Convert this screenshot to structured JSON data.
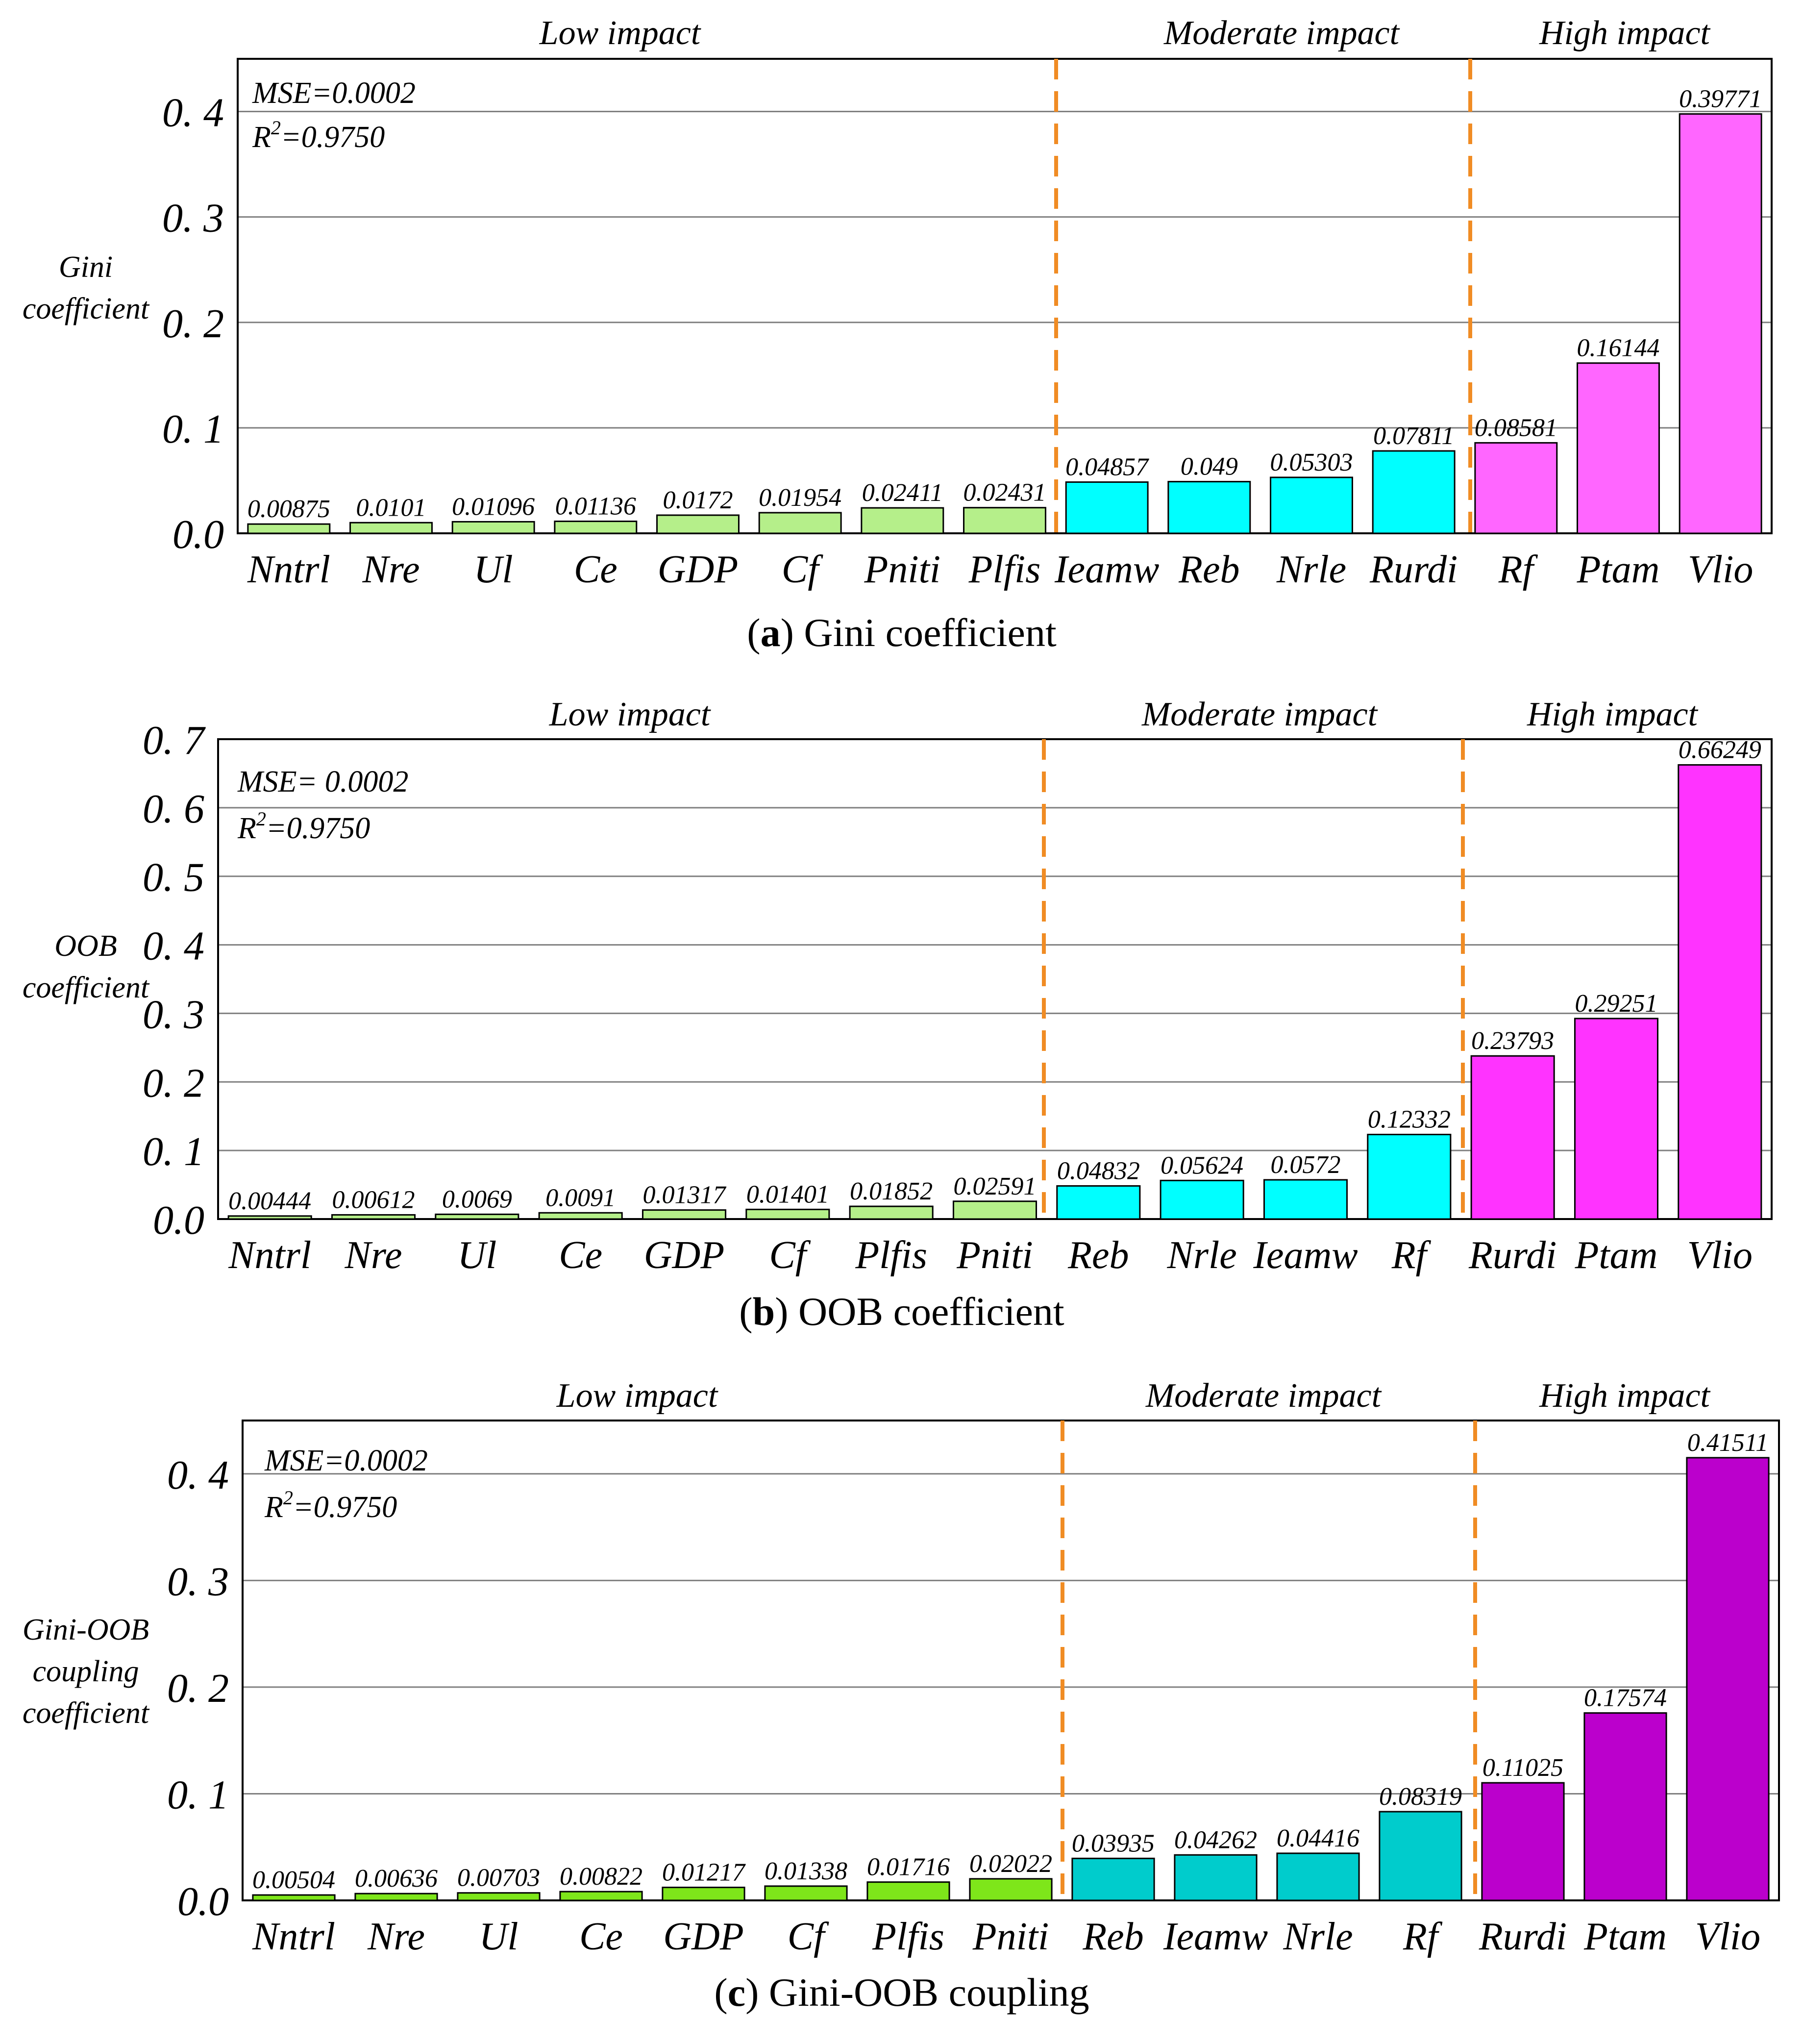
{
  "colors": {
    "low_a": "#b5ef8a",
    "mod_a": "#00ffff",
    "high_a": "#ff66ff",
    "low_b": "#b5ef8a",
    "mod_b": "#00ffff",
    "high_b": "#ff33ff",
    "low_c": "#7ee61a",
    "mod_c": "#00cccc",
    "high_c": "#bb00cc",
    "divider": "#f08c24",
    "grid": "#808080",
    "axis": "#000000"
  },
  "chart_data": [
    {
      "type": "bar",
      "caption_letter": "a",
      "caption_text": ") Gini coefficient",
      "ylabel": [
        "Gini",
        "coefficient"
      ],
      "ylim": [
        0,
        0.45
      ],
      "yticks": [
        "0.0",
        "0. 1",
        "0. 2",
        "0. 3",
        "0. 4"
      ],
      "ytick_values": [
        0,
        0.1,
        0.2,
        0.3,
        0.4
      ],
      "annotation": {
        "mse": "MSE=0.0002",
        "r2_prefix": "R",
        "r2_sup": "2",
        "r2_suffix": "=0.9750"
      },
      "regions": [
        {
          "label": "Low impact",
          "count": 8
        },
        {
          "label": "Moderate impact",
          "count": 4
        },
        {
          "label": "High impact",
          "count": 3
        }
      ],
      "categories": [
        "Nntrl",
        "Nre",
        "Ul",
        "Ce",
        "GDP",
        "Cf",
        "Pniti",
        "Plfis",
        "Ieamw",
        "Reb",
        "Nrle",
        "Rurdi",
        "Rf",
        "Ptam",
        "Vlio"
      ],
      "values": [
        0.00875,
        0.0101,
        0.01096,
        0.01136,
        0.0172,
        0.01954,
        0.02411,
        0.02431,
        0.04857,
        0.049,
        0.05303,
        0.07811,
        0.08581,
        0.16144,
        0.39771
      ],
      "value_labels": [
        "0.00875",
        "0.0101",
        "0.01096",
        "0.01136",
        "0.0172",
        "0.01954",
        "0.02411",
        "0.02431",
        "0.04857",
        "0.049",
        "0.05303",
        "0.07811",
        "0.08581",
        "0.16144",
        "0.39771"
      ],
      "grid": true
    },
    {
      "type": "bar",
      "caption_letter": "b",
      "caption_text": ") OOB coefficient",
      "ylabel": [
        "OOB",
        "coefficient"
      ],
      "ylim": [
        0,
        0.7
      ],
      "yticks": [
        "0.0",
        "0. 1",
        "0. 2",
        "0. 3",
        "0. 4",
        "0. 5",
        "0. 6",
        "0. 7"
      ],
      "ytick_values": [
        0,
        0.1,
        0.2,
        0.3,
        0.4,
        0.5,
        0.6,
        0.7
      ],
      "annotation": {
        "mse": "MSE= 0.0002",
        "r2_prefix": "R",
        "r2_sup": "2",
        "r2_suffix": "=0.9750"
      },
      "regions": [
        {
          "label": "Low impact",
          "count": 8
        },
        {
          "label": "Moderate impact",
          "count": 4
        },
        {
          "label": "High impact",
          "count": 3
        }
      ],
      "categories": [
        "Nntrl",
        "Nre",
        "Ul",
        "Ce",
        "GDP",
        "Cf",
        "Plfis",
        "Pniti",
        "Reb",
        "Nrle",
        "Ieamw",
        "Rf",
        "Rurdi",
        "Ptam",
        "Vlio"
      ],
      "values": [
        0.00444,
        0.00612,
        0.0069,
        0.0091,
        0.01317,
        0.01401,
        0.01852,
        0.02591,
        0.04832,
        0.05624,
        0.0572,
        0.12332,
        0.23793,
        0.29251,
        0.66249
      ],
      "value_labels": [
        "0.00444",
        "0.00612",
        "0.0069",
        "0.0091",
        "0.01317",
        "0.01401",
        "0.01852",
        "0.02591",
        "0.04832",
        "0.05624",
        "0.0572",
        "0.12332",
        "0.23793",
        "0.29251",
        "0.66249"
      ],
      "grid": true
    },
    {
      "type": "bar",
      "caption_letter": "c",
      "caption_text": ") Gini-OOB coupling",
      "ylabel": [
        "Gini-OOB",
        "coupling",
        "coefficient"
      ],
      "ylim": [
        0,
        0.45
      ],
      "yticks": [
        "0.0",
        "0. 1",
        "0. 2",
        "0. 3",
        "0. 4"
      ],
      "ytick_values": [
        0,
        0.1,
        0.2,
        0.3,
        0.4
      ],
      "annotation": {
        "mse": "MSE=0.0002",
        "r2_prefix": "R",
        "r2_sup": "2",
        "r2_suffix": "=0.9750"
      },
      "regions": [
        {
          "label": "Low impact",
          "count": 8
        },
        {
          "label": "Moderate impact",
          "count": 4
        },
        {
          "label": "High impact",
          "count": 3
        }
      ],
      "categories": [
        "Nntrl",
        "Nre",
        "Ul",
        "Ce",
        "GDP",
        "Cf",
        "Plfis",
        "Pniti",
        "Reb",
        "Ieamw",
        "Nrle",
        "Rf",
        "Rurdi",
        "Ptam",
        "Vlio"
      ],
      "values": [
        0.00504,
        0.00636,
        0.00703,
        0.00822,
        0.01217,
        0.01338,
        0.01716,
        0.02022,
        0.03935,
        0.04262,
        0.04416,
        0.08319,
        0.11025,
        0.17574,
        0.41511
      ],
      "value_labels": [
        "0.00504",
        "0.00636",
        "0.00703",
        "0.00822",
        "0.01217",
        "0.01338",
        "0.01716",
        "0.02022",
        "0.03935",
        "0.04262",
        "0.04416",
        "0.08319",
        "0.11025",
        "0.17574",
        "0.41511"
      ],
      "grid": true
    }
  ]
}
